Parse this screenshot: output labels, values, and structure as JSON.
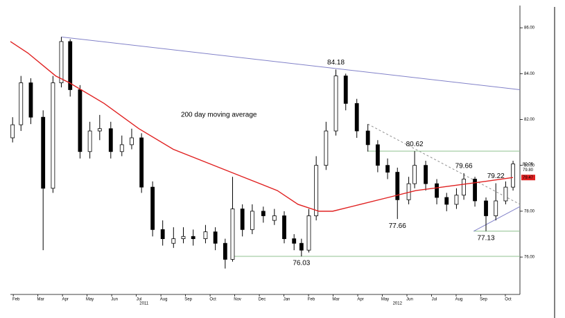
{
  "chart_data": {
    "type": "candlestick",
    "xlim": [
      0.77,
      21.48
    ],
    "ylim": [
      74.37,
      86.97
    ],
    "xticks": [
      {
        "value": 1,
        "label": "Feb"
      },
      {
        "value": 2,
        "label": "Mar"
      },
      {
        "value": 3,
        "label": "Apr"
      },
      {
        "value": 4,
        "label": "May"
      },
      {
        "value": 5,
        "label": "Jun"
      },
      {
        "value": 6,
        "label": "Jul"
      },
      {
        "value": 7,
        "label": "Aug"
      },
      {
        "value": 8,
        "label": "Sep"
      },
      {
        "value": 9,
        "label": "Oct"
      },
      {
        "value": 10,
        "label": "Nov"
      },
      {
        "value": 11,
        "label": "Dec"
      },
      {
        "value": 12,
        "label": "Jan"
      },
      {
        "value": 13,
        "label": "Feb"
      },
      {
        "value": 14,
        "label": "Mar"
      },
      {
        "value": 15,
        "label": "Apr"
      },
      {
        "value": 16,
        "label": "May"
      },
      {
        "value": 17,
        "label": "Jun"
      },
      {
        "value": 18,
        "label": "Jul"
      },
      {
        "value": 19,
        "label": "Aug"
      },
      {
        "value": 20,
        "label": "Sep"
      },
      {
        "value": 21,
        "label": "Oct"
      }
    ],
    "year_ticks": [
      {
        "value": 6.2,
        "label": "2011"
      },
      {
        "value": 16.5,
        "label": "2012"
      }
    ],
    "yticks": [
      {
        "value": 86,
        "label": "86.00"
      },
      {
        "value": 84,
        "label": "84.00"
      },
      {
        "value": 82,
        "label": "82.00"
      },
      {
        "value": 80,
        "label": "80.00"
      },
      {
        "value": 78,
        "label": "78.00"
      },
      {
        "value": 76,
        "label": "76.00"
      }
    ],
    "x": [
      0.86,
      1.2,
      1.6,
      2.1,
      2.5,
      2.84,
      3.2,
      3.6,
      4.0,
      4.4,
      4.85,
      5.3,
      5.7,
      6.1,
      6.55,
      6.96,
      7.4,
      7.8,
      8.2,
      8.7,
      9.1,
      9.5,
      9.8,
      10.2,
      10.6,
      11.05,
      11.5,
      11.9,
      12.3,
      12.6,
      12.9,
      13.2,
      13.6,
      14.0,
      14.4,
      14.85,
      15.3,
      15.7,
      16.1,
      16.5,
      16.96,
      17.2,
      17.65,
      18.1,
      18.5,
      18.9,
      19.2,
      19.65,
      20.1,
      20.5,
      20.9,
      21.2
    ],
    "open": [
      81.2,
      81.77,
      83.6,
      82.1,
      79.0,
      83.6,
      85.4,
      83.3,
      80.6,
      81.5,
      81.6,
      80.6,
      80.9,
      81.2,
      79.05,
      77.2,
      76.6,
      76.8,
      76.9,
      76.8,
      77.1,
      76.6,
      75.9,
      78.1,
      77.2,
      78.0,
      77.6,
      77.8,
      76.8,
      76.6,
      76.3,
      77.8,
      80.0,
      81.5,
      83.9,
      82.7,
      81.5,
      80.9,
      80.0,
      79.7,
      78.5,
      79.2,
      80.0,
      79.2,
      78.6,
      78.3,
      78.7,
      79.4,
      78.45,
      77.8,
      78.45,
      79.05
    ],
    "high": [
      82.1,
      83.9,
      83.8,
      82.4,
      83.9,
      85.6,
      85.5,
      83.5,
      81.9,
      82.2,
      81.9,
      81.3,
      81.6,
      81.4,
      79.3,
      77.6,
      77.3,
      77.3,
      77.2,
      77.4,
      77.3,
      76.8,
      79.5,
      78.3,
      78.3,
      78.2,
      78.1,
      78.0,
      77.0,
      76.8,
      78.1,
      80.4,
      81.9,
      84.18,
      84.0,
      82.9,
      81.8,
      81.1,
      80.3,
      79.9,
      79.5,
      80.62,
      80.2,
      79.4,
      78.8,
      79.0,
      79.66,
      79.5,
      78.6,
      79.22,
      79.3,
      80.2
    ],
    "low": [
      81.0,
      81.5,
      81.8,
      76.3,
      78.8,
      83.4,
      83.0,
      80.3,
      80.3,
      81.1,
      80.3,
      80.4,
      80.7,
      78.8,
      76.9,
      76.5,
      76.4,
      76.6,
      76.5,
      76.6,
      76.3,
      75.5,
      75.8,
      76.9,
      77.0,
      77.5,
      77.4,
      76.6,
      76.3,
      76.03,
      76.2,
      77.6,
      79.8,
      81.3,
      82.4,
      81.2,
      80.6,
      79.7,
      79.4,
      77.66,
      78.3,
      79.0,
      78.9,
      78.3,
      78.0,
      78.1,
      78.5,
      78.2,
      77.13,
      77.6,
      78.3,
      78.9
    ],
    "close": [
      81.77,
      83.6,
      82.1,
      79.0,
      83.6,
      85.4,
      83.3,
      80.6,
      81.5,
      81.6,
      80.6,
      80.9,
      81.2,
      79.05,
      77.2,
      76.8,
      76.8,
      76.9,
      76.8,
      77.1,
      76.6,
      75.9,
      78.1,
      77.2,
      78.0,
      77.8,
      77.8,
      76.8,
      76.6,
      76.3,
      77.8,
      80.0,
      81.5,
      83.9,
      82.7,
      81.5,
      80.9,
      80.0,
      79.7,
      78.5,
      79.2,
      80.0,
      79.2,
      78.6,
      78.3,
      78.7,
      79.4,
      78.45,
      77.8,
      78.45,
      79.05,
      80.06
    ],
    "moving_average": {
      "color": "#e02020",
      "x": [
        0.77,
        1.48,
        2.61,
        3.17,
        4.58,
        5.99,
        7.39,
        8.8,
        10.21,
        11.62,
        12.46,
        13.31,
        13.87,
        15.0,
        16.13,
        17.25,
        18.66,
        20.07,
        21.2
      ],
      "values": [
        85.4,
        84.9,
        83.9,
        83.6,
        82.7,
        81.6,
        80.7,
        80.1,
        79.5,
        78.9,
        78.3,
        78.0,
        78.0,
        78.3,
        78.6,
        78.9,
        79.1,
        79.3,
        79.47
      ]
    },
    "lines": [
      {
        "color": "#8080c8",
        "dash": false,
        "x": [
          2.84,
          21.48
        ],
        "values": [
          85.6,
          83.3
        ]
      },
      {
        "color": "#909090",
        "dash": true,
        "x": [
          15.3,
          21.48
        ],
        "values": [
          81.8,
          78.3
        ]
      },
      {
        "color": "#8fc08f",
        "dash": false,
        "x": [
          15.3,
          21.48
        ],
        "values": [
          80.62,
          80.62
        ]
      },
      {
        "color": "#8fc08f",
        "dash": false,
        "x": [
          9.8,
          21.48
        ],
        "values": [
          76.03,
          76.03
        ]
      },
      {
        "color": "#8fc08f",
        "dash": false,
        "x": [
          19.6,
          21.48
        ],
        "values": [
          77.13,
          77.13
        ]
      },
      {
        "color": "#8080c8",
        "dash": false,
        "x": [
          19.6,
          21.48
        ],
        "values": [
          77.13,
          78.2
        ]
      }
    ],
    "annotations": [
      {
        "label": "84.18",
        "value": 84.18,
        "x": 14.0,
        "position": "above"
      },
      {
        "label": "80.62",
        "value": 80.62,
        "x": 17.2,
        "position": "above"
      },
      {
        "label": "79.66",
        "value": 79.66,
        "x": 19.2,
        "position": "above"
      },
      {
        "label": "79.22",
        "value": 79.22,
        "x": 20.5,
        "position": "above"
      },
      {
        "label": "77.66",
        "value": 77.66,
        "x": 16.5,
        "position": "below"
      },
      {
        "label": "77.13",
        "value": 77.13,
        "x": 20.1,
        "position": "below"
      },
      {
        "label": "76.03",
        "value": 76.03,
        "x": 12.6,
        "position": "below"
      }
    ],
    "ma_label": {
      "text": "200 day moving average",
      "x": 7.7,
      "y": 82.2
    },
    "price_tags": [
      {
        "value": 80.06,
        "label": "80.06",
        "highlight": false
      },
      {
        "value": 79.8,
        "label": "79.80",
        "highlight": false
      },
      {
        "value": 79.47,
        "label": "79.47",
        "highlight": true
      }
    ]
  }
}
